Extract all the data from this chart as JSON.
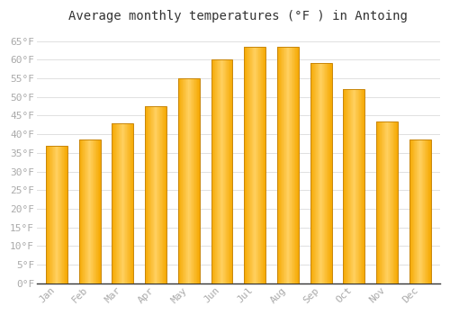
{
  "title": "Average monthly temperatures (°F ) in Antoing",
  "months": [
    "Jan",
    "Feb",
    "Mar",
    "Apr",
    "May",
    "Jun",
    "Jul",
    "Aug",
    "Sep",
    "Oct",
    "Nov",
    "Dec"
  ],
  "values": [
    37,
    38.5,
    43,
    47.5,
    55,
    60,
    63.5,
    63.5,
    59,
    52,
    43.5,
    38.5
  ],
  "bar_color_outer": "#F5A800",
  "bar_color_inner": "#FFD060",
  "bar_edge_color": "#C8860A",
  "background_color": "#FFFFFF",
  "grid_color": "#E0E0E0",
  "ylim": [
    0,
    68
  ],
  "yticks": [
    0,
    5,
    10,
    15,
    20,
    25,
    30,
    35,
    40,
    45,
    50,
    55,
    60,
    65
  ],
  "title_fontsize": 10,
  "tick_fontsize": 8,
  "tick_color": "#AAAAAA",
  "font_family": "monospace",
  "bar_width": 0.65
}
